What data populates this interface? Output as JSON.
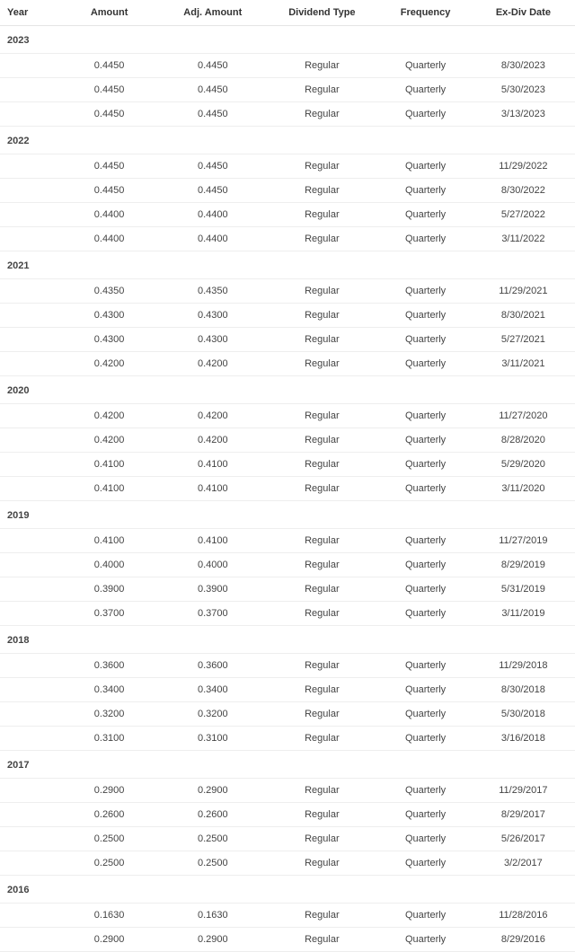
{
  "columns": {
    "year": "Year",
    "amount": "Amount",
    "adj_amount": "Adj. Amount",
    "dividend_type": "Dividend Type",
    "frequency": "Frequency",
    "ex_div_date": "Ex-Div Date"
  },
  "styling": {
    "background_color": "#ffffff",
    "text_color": "#333333",
    "border_color": "#eeeeee",
    "header_border_color": "#e5e5e5",
    "font_size": 11,
    "year_font_weight": 700,
    "header_font_weight": 600
  },
  "groups": [
    {
      "year": "2023",
      "rows": [
        {
          "amount": "0.4450",
          "adj_amount": "0.4450",
          "dividend_type": "Regular",
          "frequency": "Quarterly",
          "ex_div_date": "8/30/2023"
        },
        {
          "amount": "0.4450",
          "adj_amount": "0.4450",
          "dividend_type": "Regular",
          "frequency": "Quarterly",
          "ex_div_date": "5/30/2023"
        },
        {
          "amount": "0.4450",
          "adj_amount": "0.4450",
          "dividend_type": "Regular",
          "frequency": "Quarterly",
          "ex_div_date": "3/13/2023"
        }
      ]
    },
    {
      "year": "2022",
      "rows": [
        {
          "amount": "0.4450",
          "adj_amount": "0.4450",
          "dividend_type": "Regular",
          "frequency": "Quarterly",
          "ex_div_date": "11/29/2022"
        },
        {
          "amount": "0.4450",
          "adj_amount": "0.4450",
          "dividend_type": "Regular",
          "frequency": "Quarterly",
          "ex_div_date": "8/30/2022"
        },
        {
          "amount": "0.4400",
          "adj_amount": "0.4400",
          "dividend_type": "Regular",
          "frequency": "Quarterly",
          "ex_div_date": "5/27/2022"
        },
        {
          "amount": "0.4400",
          "adj_amount": "0.4400",
          "dividend_type": "Regular",
          "frequency": "Quarterly",
          "ex_div_date": "3/11/2022"
        }
      ]
    },
    {
      "year": "2021",
      "rows": [
        {
          "amount": "0.4350",
          "adj_amount": "0.4350",
          "dividend_type": "Regular",
          "frequency": "Quarterly",
          "ex_div_date": "11/29/2021"
        },
        {
          "amount": "0.4300",
          "adj_amount": "0.4300",
          "dividend_type": "Regular",
          "frequency": "Quarterly",
          "ex_div_date": "8/30/2021"
        },
        {
          "amount": "0.4300",
          "adj_amount": "0.4300",
          "dividend_type": "Regular",
          "frequency": "Quarterly",
          "ex_div_date": "5/27/2021"
        },
        {
          "amount": "0.4200",
          "adj_amount": "0.4200",
          "dividend_type": "Regular",
          "frequency": "Quarterly",
          "ex_div_date": "3/11/2021"
        }
      ]
    },
    {
      "year": "2020",
      "rows": [
        {
          "amount": "0.4200",
          "adj_amount": "0.4200",
          "dividend_type": "Regular",
          "frequency": "Quarterly",
          "ex_div_date": "11/27/2020"
        },
        {
          "amount": "0.4200",
          "adj_amount": "0.4200",
          "dividend_type": "Regular",
          "frequency": "Quarterly",
          "ex_div_date": "8/28/2020"
        },
        {
          "amount": "0.4100",
          "adj_amount": "0.4100",
          "dividend_type": "Regular",
          "frequency": "Quarterly",
          "ex_div_date": "5/29/2020"
        },
        {
          "amount": "0.4100",
          "adj_amount": "0.4100",
          "dividend_type": "Regular",
          "frequency": "Quarterly",
          "ex_div_date": "3/11/2020"
        }
      ]
    },
    {
      "year": "2019",
      "rows": [
        {
          "amount": "0.4100",
          "adj_amount": "0.4100",
          "dividend_type": "Regular",
          "frequency": "Quarterly",
          "ex_div_date": "11/27/2019"
        },
        {
          "amount": "0.4000",
          "adj_amount": "0.4000",
          "dividend_type": "Regular",
          "frequency": "Quarterly",
          "ex_div_date": "8/29/2019"
        },
        {
          "amount": "0.3900",
          "adj_amount": "0.3900",
          "dividend_type": "Regular",
          "frequency": "Quarterly",
          "ex_div_date": "5/31/2019"
        },
        {
          "amount": "0.3700",
          "adj_amount": "0.3700",
          "dividend_type": "Regular",
          "frequency": "Quarterly",
          "ex_div_date": "3/11/2019"
        }
      ]
    },
    {
      "year": "2018",
      "rows": [
        {
          "amount": "0.3600",
          "adj_amount": "0.3600",
          "dividend_type": "Regular",
          "frequency": "Quarterly",
          "ex_div_date": "11/29/2018"
        },
        {
          "amount": "0.3400",
          "adj_amount": "0.3400",
          "dividend_type": "Regular",
          "frequency": "Quarterly",
          "ex_div_date": "8/30/2018"
        },
        {
          "amount": "0.3200",
          "adj_amount": "0.3200",
          "dividend_type": "Regular",
          "frequency": "Quarterly",
          "ex_div_date": "5/30/2018"
        },
        {
          "amount": "0.3100",
          "adj_amount": "0.3100",
          "dividend_type": "Regular",
          "frequency": "Quarterly",
          "ex_div_date": "3/16/2018"
        }
      ]
    },
    {
      "year": "2017",
      "rows": [
        {
          "amount": "0.2900",
          "adj_amount": "0.2900",
          "dividend_type": "Regular",
          "frequency": "Quarterly",
          "ex_div_date": "11/29/2017"
        },
        {
          "amount": "0.2600",
          "adj_amount": "0.2600",
          "dividend_type": "Regular",
          "frequency": "Quarterly",
          "ex_div_date": "8/29/2017"
        },
        {
          "amount": "0.2500",
          "adj_amount": "0.2500",
          "dividend_type": "Regular",
          "frequency": "Quarterly",
          "ex_div_date": "5/26/2017"
        },
        {
          "amount": "0.2500",
          "adj_amount": "0.2500",
          "dividend_type": "Regular",
          "frequency": "Quarterly",
          "ex_div_date": "3/2/2017"
        }
      ]
    },
    {
      "year": "2016",
      "rows": [
        {
          "amount": "0.1630",
          "adj_amount": "0.1630",
          "dividend_type": "Regular",
          "frequency": "Quarterly",
          "ex_div_date": "11/28/2016"
        },
        {
          "amount": "0.2900",
          "adj_amount": "0.2900",
          "dividend_type": "Regular",
          "frequency": "Quarterly",
          "ex_div_date": "8/29/2016"
        }
      ]
    }
  ]
}
